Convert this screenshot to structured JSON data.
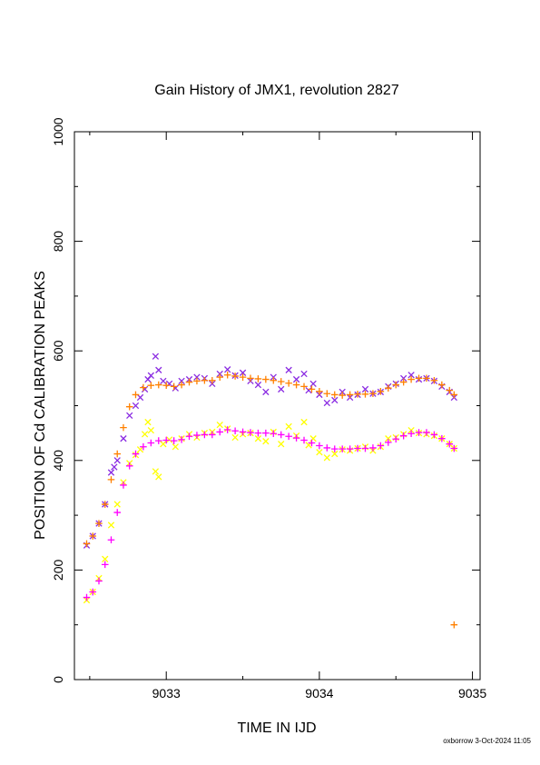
{
  "chart_data": {
    "type": "scatter",
    "title": "Gain History of JMX1, revolution 2827",
    "xlabel": "TIME IN IJD",
    "ylabel": "POSITION OF Cd CALIBRATION PEAKS",
    "footer": "oxborrow  3-Oct-2024 11:05",
    "xlim": [
      9032.4,
      9035.05
    ],
    "ylim": [
      0,
      1000
    ],
    "xticks": [
      9033,
      9034,
      9035
    ],
    "yticks": [
      0,
      200,
      400,
      600,
      800,
      1000
    ],
    "grid": false,
    "legend": "none",
    "series": [
      {
        "marker": "x",
        "color": "#8a2be2",
        "points": [
          [
            9032.48,
            245
          ],
          [
            9032.52,
            262
          ],
          [
            9032.56,
            285
          ],
          [
            9032.6,
            320
          ],
          [
            9032.64,
            378
          ],
          [
            9032.66,
            388
          ],
          [
            9032.68,
            400
          ],
          [
            9032.72,
            440
          ],
          [
            9032.76,
            482
          ],
          [
            9032.8,
            500
          ],
          [
            9032.83,
            515
          ],
          [
            9032.86,
            530
          ],
          [
            9032.88,
            548
          ],
          [
            9032.9,
            555
          ],
          [
            9032.93,
            590
          ],
          [
            9032.95,
            565
          ],
          [
            9032.98,
            545
          ],
          [
            9033.02,
            540
          ],
          [
            9033.06,
            532
          ],
          [
            9033.1,
            545
          ],
          [
            9033.15,
            548
          ],
          [
            9033.2,
            552
          ],
          [
            9033.25,
            550
          ],
          [
            9033.3,
            540
          ],
          [
            9033.35,
            558
          ],
          [
            9033.4,
            566
          ],
          [
            9033.45,
            555
          ],
          [
            9033.5,
            560
          ],
          [
            9033.55,
            545
          ],
          [
            9033.6,
            538
          ],
          [
            9033.65,
            525
          ],
          [
            9033.7,
            552
          ],
          [
            9033.75,
            530
          ],
          [
            9033.8,
            565
          ],
          [
            9033.85,
            548
          ],
          [
            9033.9,
            558
          ],
          [
            9033.93,
            528
          ],
          [
            9033.96,
            540
          ],
          [
            9034.0,
            520
          ],
          [
            9034.05,
            505
          ],
          [
            9034.1,
            510
          ],
          [
            9034.15,
            525
          ],
          [
            9034.2,
            515
          ],
          [
            9034.25,
            520
          ],
          [
            9034.3,
            530
          ],
          [
            9034.35,
            522
          ],
          [
            9034.4,
            525
          ],
          [
            9034.45,
            535
          ],
          [
            9034.5,
            540
          ],
          [
            9034.55,
            550
          ],
          [
            9034.6,
            556
          ],
          [
            9034.65,
            548
          ],
          [
            9034.7,
            550
          ],
          [
            9034.75,
            545
          ],
          [
            9034.8,
            535
          ],
          [
            9034.85,
            525
          ],
          [
            9034.88,
            515
          ]
        ]
      },
      {
        "marker": "+",
        "color": "#ff8000",
        "points": [
          [
            9032.48,
            248
          ],
          [
            9032.52,
            262
          ],
          [
            9032.56,
            285
          ],
          [
            9032.6,
            320
          ],
          [
            9032.64,
            365
          ],
          [
            9032.68,
            412
          ],
          [
            9032.72,
            460
          ],
          [
            9032.76,
            498
          ],
          [
            9032.8,
            520
          ],
          [
            9032.85,
            533
          ],
          [
            9032.9,
            537
          ],
          [
            9032.95,
            538
          ],
          [
            9033.0,
            537
          ],
          [
            9033.05,
            535
          ],
          [
            9033.1,
            538
          ],
          [
            9033.15,
            543
          ],
          [
            9033.2,
            545
          ],
          [
            9033.25,
            546
          ],
          [
            9033.3,
            546
          ],
          [
            9033.35,
            552
          ],
          [
            9033.4,
            556
          ],
          [
            9033.45,
            554
          ],
          [
            9033.5,
            552
          ],
          [
            9033.55,
            550
          ],
          [
            9033.6,
            549
          ],
          [
            9033.65,
            548
          ],
          [
            9033.7,
            546
          ],
          [
            9033.75,
            544
          ],
          [
            9033.8,
            541
          ],
          [
            9033.85,
            538
          ],
          [
            9033.9,
            535
          ],
          [
            9033.95,
            530
          ],
          [
            9034.0,
            526
          ],
          [
            9034.05,
            522
          ],
          [
            9034.1,
            520
          ],
          [
            9034.15,
            519
          ],
          [
            9034.2,
            520
          ],
          [
            9034.25,
            521
          ],
          [
            9034.3,
            521
          ],
          [
            9034.35,
            522
          ],
          [
            9034.4,
            526
          ],
          [
            9034.45,
            532
          ],
          [
            9034.5,
            538
          ],
          [
            9034.55,
            543
          ],
          [
            9034.6,
            548
          ],
          [
            9034.65,
            550
          ],
          [
            9034.7,
            550
          ],
          [
            9034.75,
            546
          ],
          [
            9034.8,
            538
          ],
          [
            9034.85,
            528
          ],
          [
            9034.88,
            520
          ],
          [
            9034.88,
            100
          ]
        ]
      },
      {
        "marker": "x",
        "color": "#ffff00",
        "points": [
          [
            9032.48,
            145
          ],
          [
            9032.52,
            160
          ],
          [
            9032.56,
            185
          ],
          [
            9032.6,
            220
          ],
          [
            9032.64,
            282
          ],
          [
            9032.68,
            320
          ],
          [
            9032.72,
            360
          ],
          [
            9032.76,
            395
          ],
          [
            9032.8,
            410
          ],
          [
            9032.83,
            420
          ],
          [
            9032.86,
            448
          ],
          [
            9032.88,
            470
          ],
          [
            9032.9,
            455
          ],
          [
            9032.93,
            380
          ],
          [
            9032.95,
            370
          ],
          [
            9032.98,
            430
          ],
          [
            9033.02,
            438
          ],
          [
            9033.06,
            425
          ],
          [
            9033.1,
            440
          ],
          [
            9033.15,
            448
          ],
          [
            9033.2,
            442
          ],
          [
            9033.25,
            450
          ],
          [
            9033.3,
            452
          ],
          [
            9033.35,
            465
          ],
          [
            9033.4,
            458
          ],
          [
            9033.45,
            442
          ],
          [
            9033.5,
            448
          ],
          [
            9033.55,
            450
          ],
          [
            9033.6,
            440
          ],
          [
            9033.65,
            435
          ],
          [
            9033.7,
            452
          ],
          [
            9033.75,
            430
          ],
          [
            9033.8,
            462
          ],
          [
            9033.85,
            445
          ],
          [
            9033.9,
            470
          ],
          [
            9033.93,
            428
          ],
          [
            9033.96,
            440
          ],
          [
            9034.0,
            415
          ],
          [
            9034.05,
            405
          ],
          [
            9034.1,
            412
          ],
          [
            9034.15,
            420
          ],
          [
            9034.2,
            418
          ],
          [
            9034.25,
            422
          ],
          [
            9034.3,
            425
          ],
          [
            9034.35,
            418
          ],
          [
            9034.4,
            425
          ],
          [
            9034.45,
            440
          ],
          [
            9034.5,
            442
          ],
          [
            9034.55,
            448
          ],
          [
            9034.6,
            455
          ],
          [
            9034.65,
            450
          ],
          [
            9034.7,
            448
          ],
          [
            9034.75,
            445
          ],
          [
            9034.8,
            440
          ],
          [
            9034.85,
            430
          ],
          [
            9034.88,
            422
          ]
        ]
      },
      {
        "marker": "+",
        "color": "#ff00ff",
        "points": [
          [
            9032.48,
            150
          ],
          [
            9032.52,
            160
          ],
          [
            9032.56,
            180
          ],
          [
            9032.6,
            210
          ],
          [
            9032.64,
            255
          ],
          [
            9032.68,
            305
          ],
          [
            9032.72,
            355
          ],
          [
            9032.76,
            390
          ],
          [
            9032.8,
            412
          ],
          [
            9032.85,
            425
          ],
          [
            9032.9,
            432
          ],
          [
            9032.95,
            436
          ],
          [
            9033.0,
            437
          ],
          [
            9033.05,
            436
          ],
          [
            9033.1,
            438
          ],
          [
            9033.15,
            444
          ],
          [
            9033.2,
            446
          ],
          [
            9033.25,
            447
          ],
          [
            9033.3,
            447
          ],
          [
            9033.35,
            452
          ],
          [
            9033.4,
            456
          ],
          [
            9033.45,
            454
          ],
          [
            9033.5,
            452
          ],
          [
            9033.55,
            451
          ],
          [
            9033.6,
            450
          ],
          [
            9033.65,
            450
          ],
          [
            9033.7,
            449
          ],
          [
            9033.75,
            447
          ],
          [
            9033.8,
            444
          ],
          [
            9033.85,
            441
          ],
          [
            9033.9,
            437
          ],
          [
            9033.95,
            432
          ],
          [
            9034.0,
            427
          ],
          [
            9034.05,
            423
          ],
          [
            9034.1,
            421
          ],
          [
            9034.15,
            421
          ],
          [
            9034.2,
            421
          ],
          [
            9034.25,
            422
          ],
          [
            9034.3,
            422
          ],
          [
            9034.35,
            423
          ],
          [
            9034.4,
            427
          ],
          [
            9034.45,
            433
          ],
          [
            9034.5,
            439
          ],
          [
            9034.55,
            445
          ],
          [
            9034.6,
            449
          ],
          [
            9034.65,
            451
          ],
          [
            9034.7,
            451
          ],
          [
            9034.75,
            447
          ],
          [
            9034.8,
            440
          ],
          [
            9034.85,
            430
          ],
          [
            9034.88,
            422
          ]
        ]
      }
    ]
  }
}
